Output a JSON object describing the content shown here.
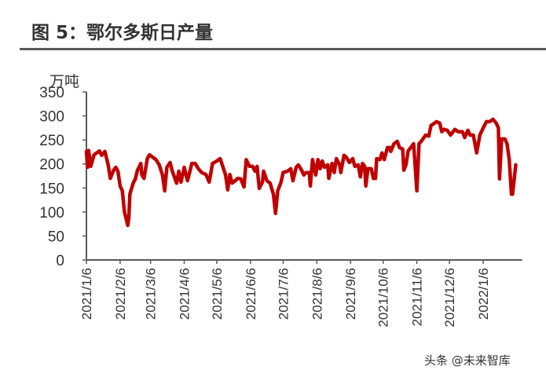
{
  "title": "图 5：鄂尔多斯日产量",
  "watermark": "头条 @未来智库",
  "chart_data": {
    "type": "line",
    "title": "图 5：鄂尔多斯日产量",
    "ylabel": "万吨",
    "xlabel": "",
    "ylim": [
      0,
      350
    ],
    "yticks": [
      0,
      50,
      100,
      150,
      200,
      250,
      300,
      350
    ],
    "x_start": "2021/1/6",
    "x_unit": "days since 2021/1/6",
    "xticks": [
      {
        "day": 0,
        "label": "2021/1/6"
      },
      {
        "day": 31,
        "label": "2021/2/6"
      },
      {
        "day": 59,
        "label": "2021/3/6"
      },
      {
        "day": 90,
        "label": "2021/4/6"
      },
      {
        "day": 120,
        "label": "2021/5/6"
      },
      {
        "day": 151,
        "label": "2021/6/6"
      },
      {
        "day": 181,
        "label": "2021/7/6"
      },
      {
        "day": 212,
        "label": "2021/8/6"
      },
      {
        "day": 243,
        "label": "2021/9/6"
      },
      {
        "day": 273,
        "label": "2021/10/6"
      },
      {
        "day": 304,
        "label": "2021/11/6"
      },
      {
        "day": 334,
        "label": "2021/12/6"
      },
      {
        "day": 365,
        "label": "2022/1/6"
      }
    ],
    "xmax": 398,
    "color": "#c00000",
    "grid": false,
    "series": [
      {
        "name": "鄂尔多斯日产量",
        "points": [
          [
            0,
            226
          ],
          [
            1,
            193
          ],
          [
            2,
            228
          ],
          [
            4,
            195
          ],
          [
            7,
            219
          ],
          [
            12,
            227
          ],
          [
            14,
            218
          ],
          [
            17,
            226
          ],
          [
            20,
            198
          ],
          [
            22,
            170
          ],
          [
            25,
            187
          ],
          [
            27,
            193
          ],
          [
            29,
            185
          ],
          [
            31,
            154
          ],
          [
            33,
            144
          ],
          [
            35,
            100
          ],
          [
            38,
            72
          ],
          [
            39,
            88
          ],
          [
            40,
            137
          ],
          [
            43,
            160
          ],
          [
            45,
            169
          ],
          [
            47,
            187
          ],
          [
            50,
            201
          ],
          [
            51,
            177
          ],
          [
            53,
            170
          ],
          [
            56,
            211
          ],
          [
            58,
            219
          ],
          [
            61,
            214
          ],
          [
            64,
            209
          ],
          [
            67,
            198
          ],
          [
            70,
            177
          ],
          [
            72,
            144
          ],
          [
            74,
            193
          ],
          [
            77,
            203
          ],
          [
            79,
            185
          ],
          [
            83,
            160
          ],
          [
            85,
            185
          ],
          [
            87,
            162
          ],
          [
            90,
            193
          ],
          [
            93,
            165
          ],
          [
            97,
            201
          ],
          [
            100,
            201
          ],
          [
            103,
            190
          ],
          [
            106,
            182
          ],
          [
            110,
            178
          ],
          [
            113,
            162
          ],
          [
            116,
            201
          ],
          [
            120,
            206
          ],
          [
            123,
            211
          ],
          [
            125,
            198
          ],
          [
            128,
            177
          ],
          [
            130,
            146
          ],
          [
            132,
            178
          ],
          [
            134,
            160
          ],
          [
            137,
            165
          ],
          [
            139,
            170
          ],
          [
            142,
            169
          ],
          [
            145,
            152
          ],
          [
            147,
            209
          ],
          [
            150,
            195
          ],
          [
            153,
            195
          ],
          [
            155,
            185
          ],
          [
            157,
            195
          ],
          [
            159,
            149
          ],
          [
            162,
            162
          ],
          [
            163,
            185
          ],
          [
            166,
            165
          ],
          [
            169,
            160
          ],
          [
            172,
            137
          ],
          [
            174,
            97
          ],
          [
            176,
            144
          ],
          [
            179,
            162
          ],
          [
            181,
            182
          ],
          [
            185,
            185
          ],
          [
            188,
            190
          ],
          [
            190,
            165
          ],
          [
            193,
            193
          ],
          [
            195,
            198
          ],
          [
            198,
            187
          ],
          [
            200,
            177
          ],
          [
            202,
            182
          ],
          [
            205,
            182
          ],
          [
            206,
            154
          ],
          [
            208,
            209
          ],
          [
            211,
            177
          ],
          [
            213,
            209
          ],
          [
            215,
            190
          ],
          [
            217,
            206
          ],
          [
            219,
            193
          ],
          [
            222,
            198
          ],
          [
            223,
            170
          ],
          [
            226,
            201
          ],
          [
            228,
            182
          ],
          [
            230,
            211
          ],
          [
            233,
            198
          ],
          [
            234,
            182
          ],
          [
            237,
            218
          ],
          [
            239,
            214
          ],
          [
            242,
            203
          ],
          [
            245,
            211
          ],
          [
            247,
            195
          ],
          [
            250,
            198
          ],
          [
            252,
            173
          ],
          [
            254,
            201
          ],
          [
            256,
            195
          ],
          [
            257,
            154
          ],
          [
            259,
            190
          ],
          [
            262,
            190
          ],
          [
            264,
            170
          ],
          [
            266,
            170
          ],
          [
            267,
            211
          ],
          [
            270,
            209
          ],
          [
            272,
            223
          ],
          [
            274,
            209
          ],
          [
            277,
            234
          ],
          [
            279,
            234
          ],
          [
            280,
            226
          ],
          [
            283,
            242
          ],
          [
            286,
            247
          ],
          [
            288,
            234
          ],
          [
            291,
            231
          ],
          [
            292,
            187
          ],
          [
            294,
            198
          ],
          [
            296,
            227
          ],
          [
            299,
            236
          ],
          [
            301,
            242
          ],
          [
            304,
            144
          ],
          [
            306,
            242
          ],
          [
            308,
            247
          ],
          [
            309,
            250
          ],
          [
            312,
            260
          ],
          [
            315,
            258
          ],
          [
            317,
            280
          ],
          [
            319,
            283
          ],
          [
            322,
            288
          ],
          [
            325,
            285
          ],
          [
            327,
            267
          ],
          [
            329,
            272
          ],
          [
            332,
            270
          ],
          [
            335,
            260
          ],
          [
            339,
            272
          ],
          [
            342,
            267
          ],
          [
            346,
            267
          ],
          [
            348,
            255
          ],
          [
            351,
            270
          ],
          [
            353,
            260
          ],
          [
            356,
            260
          ],
          [
            359,
            223
          ],
          [
            362,
            260
          ],
          [
            365,
            275
          ],
          [
            368,
            288
          ],
          [
            371,
            288
          ],
          [
            374,
            293
          ],
          [
            377,
            285
          ],
          [
            379,
            275
          ],
          [
            380,
            169
          ],
          [
            382,
            252
          ],
          [
            385,
            252
          ],
          [
            387,
            242
          ],
          [
            389,
            209
          ],
          [
            391,
            137
          ],
          [
            392,
            137
          ],
          [
            395,
            198
          ]
        ]
      }
    ]
  }
}
